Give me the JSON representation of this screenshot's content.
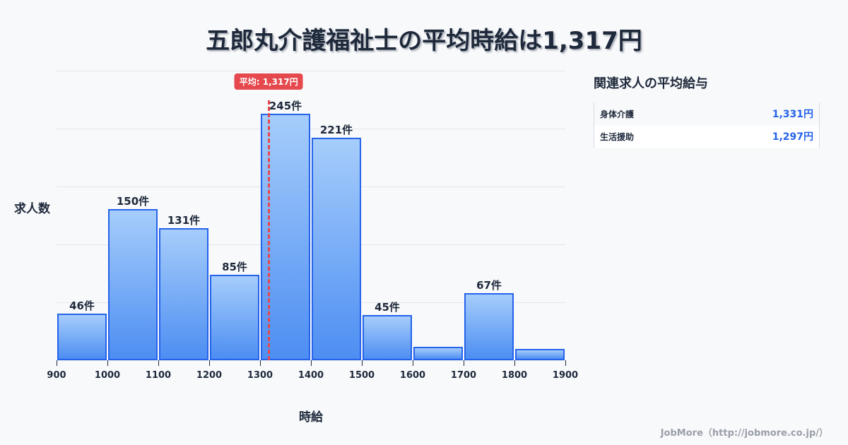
{
  "title": "五郎丸介護福祉士の平均時給は1,317円",
  "average_badge": "平均: 1,317円",
  "ylabel": "求人数",
  "xlabel": "時給",
  "side_panel": {
    "title": "関連求人の平均給与",
    "rows": [
      {
        "name": "身体介護",
        "value": "1,331円"
      },
      {
        "name": "生活援助",
        "value": "1,297円"
      }
    ]
  },
  "footer": "JobMore（http://jobmore.co.jp/）",
  "colors": {
    "bar_border": "#2563eb",
    "bar_gradient_top": "#a6cdfb",
    "bar_gradient_bottom": "#4d8ef2",
    "average_line": "#e5484d",
    "text": "#1e293b",
    "side_value": "#2563eb"
  },
  "chart_data": {
    "type": "bar",
    "title": "五郎丸介護福祉士の平均時給は1,317円",
    "xlabel": "時給",
    "ylabel": "求人数",
    "x_ticks": [
      "900",
      "1000",
      "1100",
      "1200",
      "1300",
      "1400",
      "1500",
      "1600",
      "1700",
      "1800",
      "1900"
    ],
    "categories": [
      "900-1000",
      "1000-1100",
      "1100-1200",
      "1200-1300",
      "1300-1400",
      "1400-1500",
      "1500-1600",
      "1600-1700",
      "1700-1800",
      "1800-1900"
    ],
    "values": [
      46,
      150,
      131,
      85,
      245,
      221,
      45,
      13,
      67,
      11
    ],
    "labels": [
      "46件",
      "150件",
      "131件",
      "85件",
      "245件",
      "221件",
      "45件",
      "",
      "67件",
      ""
    ],
    "average": 1317,
    "average_label": "平均: 1,317円",
    "xlim": [
      900,
      1900
    ],
    "ylim": [
      0,
      288
    ],
    "grid": true,
    "legend": "none"
  }
}
